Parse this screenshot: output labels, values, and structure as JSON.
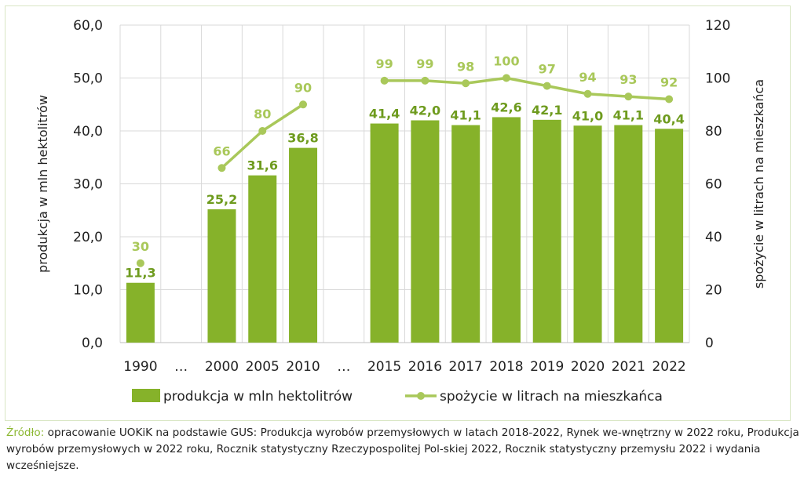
{
  "chart_data": {
    "type": "bar",
    "categories": [
      "1990",
      "…",
      "2000",
      "2005",
      "2010",
      "…",
      "2015",
      "2016",
      "2017",
      "2018",
      "2019",
      "2020",
      "2021",
      "2022"
    ],
    "series": [
      {
        "name": "produkcja w mln hektolitrów",
        "type": "bar",
        "axis": "left",
        "values": [
          11.3,
          null,
          25.2,
          31.6,
          36.8,
          null,
          41.4,
          42.0,
          41.1,
          42.6,
          42.1,
          41.0,
          41.1,
          40.4
        ],
        "labels": [
          "11,3",
          "",
          "25,2",
          "31,6",
          "36,8",
          "",
          "41,4",
          "42,0",
          "41,1",
          "42,6",
          "42,1",
          "41,0",
          "41,1",
          "40,4"
        ],
        "color": "#86b22a"
      },
      {
        "name": "spożycie w litrach na mieszkańca",
        "type": "line",
        "axis": "right",
        "values": [
          30,
          null,
          66,
          80,
          90,
          null,
          99,
          99,
          98,
          100,
          97,
          94,
          93,
          92
        ],
        "labels": [
          "30",
          "",
          "66",
          "80",
          "90",
          "",
          "99",
          "99",
          "98",
          "100",
          "97",
          "94",
          "93",
          "92"
        ],
        "color": "#a9c85a"
      }
    ],
    "ylabel": "produkcja w mln hektolitrów",
    "ylabel_right": "spożycie w litrach na mieszkańca",
    "ylim": [
      0,
      60
    ],
    "ylim_right": [
      0,
      120
    ],
    "yticks": [
      "0,0",
      "10,0",
      "20,0",
      "30,0",
      "40,0",
      "50,0",
      "60,0"
    ],
    "yticks_right": [
      "0",
      "20",
      "40",
      "60",
      "80",
      "100",
      "120"
    ],
    "grid": true,
    "legend": "bottom"
  },
  "source": {
    "label": "Źródło:",
    "text": " opracowanie UOKiK na podstawie GUS: Produkcja wyrobów przemysłowych w latach 2018-2022, Rynek we-wnętrzny w 2022 roku, Produkcja wyrobów przemysłowych w 2022 roku, Rocznik statystyczny Rzeczypospolitej Pol-skiej 2022, Rocznik statystyczny przemysłu 2022 i wydania wcześniejsze."
  }
}
